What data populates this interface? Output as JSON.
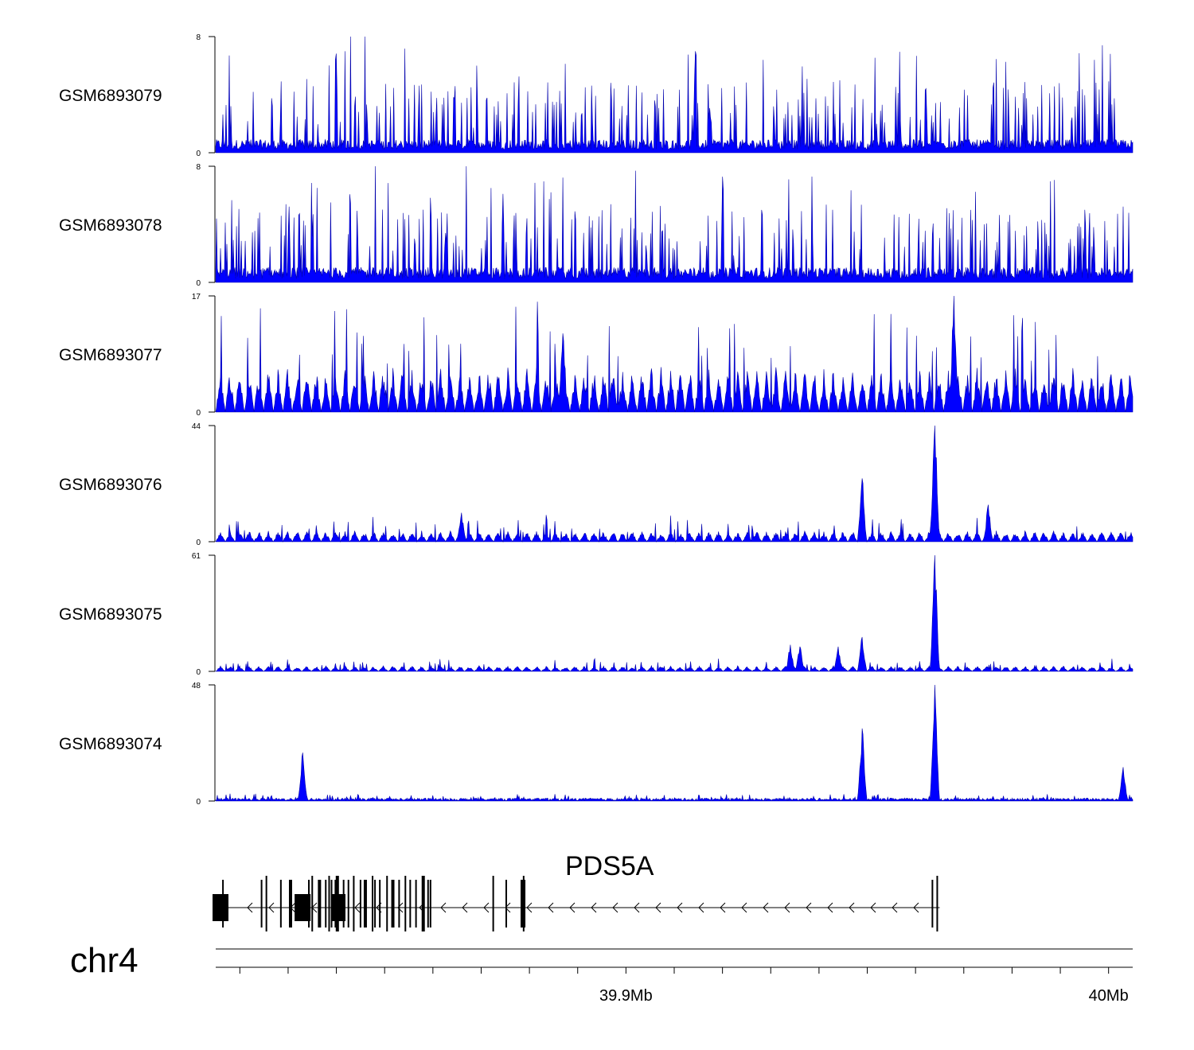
{
  "chart_data": {
    "type": "area",
    "chromosome": "chr4",
    "region": {
      "start_mb": 39.815,
      "end_mb": 40.005
    },
    "axis": {
      "major_ticks": [
        {
          "pos_mb": 39.9,
          "label": "39.9Mb"
        },
        {
          "pos_mb": 40.0,
          "label": "40Mb"
        }
      ],
      "minor_tick_step_mb": 0.01
    },
    "tracks": [
      {
        "name": "GSM6893079",
        "ymax": 8,
        "ymin": 0,
        "color": "#0000ff",
        "pattern": "noise",
        "base": 0.7,
        "spike": 3,
        "peaks": [
          {
            "pos_mb": 39.843,
            "value": 8
          },
          {
            "pos_mb": 39.846,
            "value": 8
          },
          {
            "pos_mb": 39.869,
            "value": 6
          },
          {
            "pos_mb": 39.997,
            "value": 6.4
          }
        ]
      },
      {
        "name": "GSM6893078",
        "ymax": 8,
        "ymin": 0,
        "color": "#0000ff",
        "pattern": "noise",
        "base": 0.8,
        "spike": 3,
        "peaks": [
          {
            "pos_mb": 39.848,
            "value": 8
          },
          {
            "pos_mb": 39.867,
            "value": 8
          },
          {
            "pos_mb": 39.872,
            "value": 6.5
          }
        ]
      },
      {
        "name": "GSM6893077",
        "ymax": 17,
        "ymin": 0,
        "color": "#0000ff",
        "pattern": "triangles",
        "base": 5.5,
        "spike": 11,
        "peaks": [
          {
            "pos_mb": 39.968,
            "value": 17
          },
          {
            "pos_mb": 39.887,
            "value": 11.5
          }
        ]
      },
      {
        "name": "GSM6893076",
        "ymax": 44,
        "ymin": 0,
        "color": "#0000ff",
        "pattern": "triangles",
        "base": 3.5,
        "spike": 6,
        "peaks": [
          {
            "pos_mb": 39.964,
            "value": 44
          },
          {
            "pos_mb": 39.949,
            "value": 24
          },
          {
            "pos_mb": 39.975,
            "value": 14
          },
          {
            "pos_mb": 39.866,
            "value": 11
          }
        ]
      },
      {
        "name": "GSM6893075",
        "ymax": 61,
        "ymin": 0,
        "color": "#0000ff",
        "pattern": "triangles",
        "base": 2.5,
        "spike": 4,
        "peaks": [
          {
            "pos_mb": 39.964,
            "value": 61
          },
          {
            "pos_mb": 39.949,
            "value": 18
          },
          {
            "pos_mb": 39.934,
            "value": 14
          },
          {
            "pos_mb": 39.936,
            "value": 13
          },
          {
            "pos_mb": 39.944,
            "value": 13
          }
        ]
      },
      {
        "name": "GSM6893074",
        "ymax": 48,
        "ymin": 0,
        "color": "#0000ff",
        "pattern": "noise-low",
        "base": 1.0,
        "spike": 2,
        "peaks": [
          {
            "pos_mb": 39.964,
            "value": 48
          },
          {
            "pos_mb": 39.949,
            "value": 30
          },
          {
            "pos_mb": 39.833,
            "value": 20
          },
          {
            "pos_mb": 40.003,
            "value": 14
          }
        ]
      }
    ],
    "gene": {
      "name": "PDS5A",
      "strand": "-",
      "start_mb": 39.815,
      "end_mb": 39.965,
      "exons_mb": [
        39.8155,
        39.8165,
        39.8245,
        39.8255,
        39.8285,
        39.8305,
        39.8325,
        39.8335,
        39.8343,
        39.835,
        39.8365,
        39.8378,
        39.8385,
        39.839,
        39.8398,
        39.8402,
        39.8415,
        39.8425,
        39.8436,
        39.845,
        39.846,
        39.8475,
        39.848,
        39.849,
        39.8505,
        39.8517,
        39.853,
        39.8543,
        39.8553,
        39.8565,
        39.858,
        39.859,
        39.8595,
        39.8725,
        39.8752,
        39.8785,
        39.8788,
        39.879,
        39.9635,
        39.9645
      ]
    }
  }
}
